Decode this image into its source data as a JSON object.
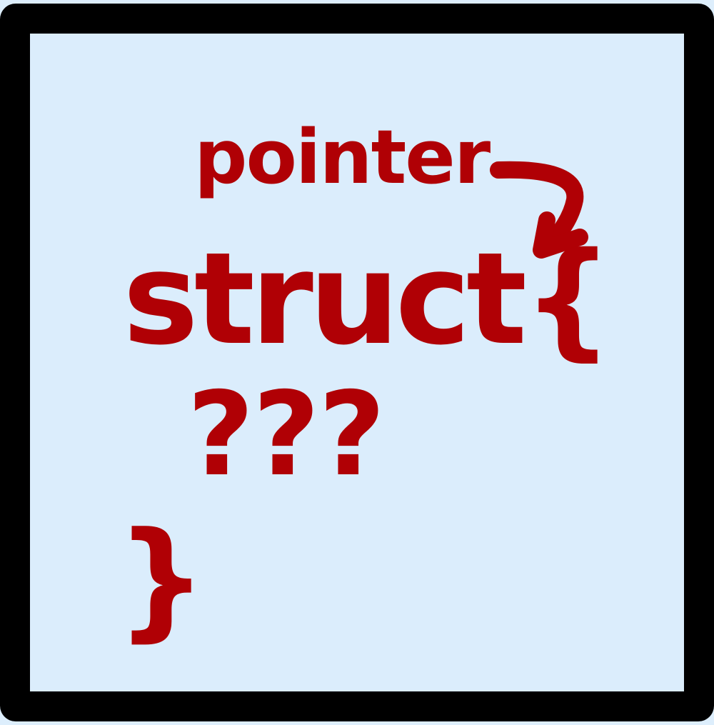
{
  "diagram": {
    "label_pointer": "pointer",
    "code_struct_open": "struct{",
    "code_placeholder": "???",
    "code_brace_close": "}"
  },
  "colors": {
    "text": "#b00005",
    "background": "#dbedfc",
    "border": "#000000"
  },
  "icons": {
    "arrow": "curved-arrow-icon"
  }
}
